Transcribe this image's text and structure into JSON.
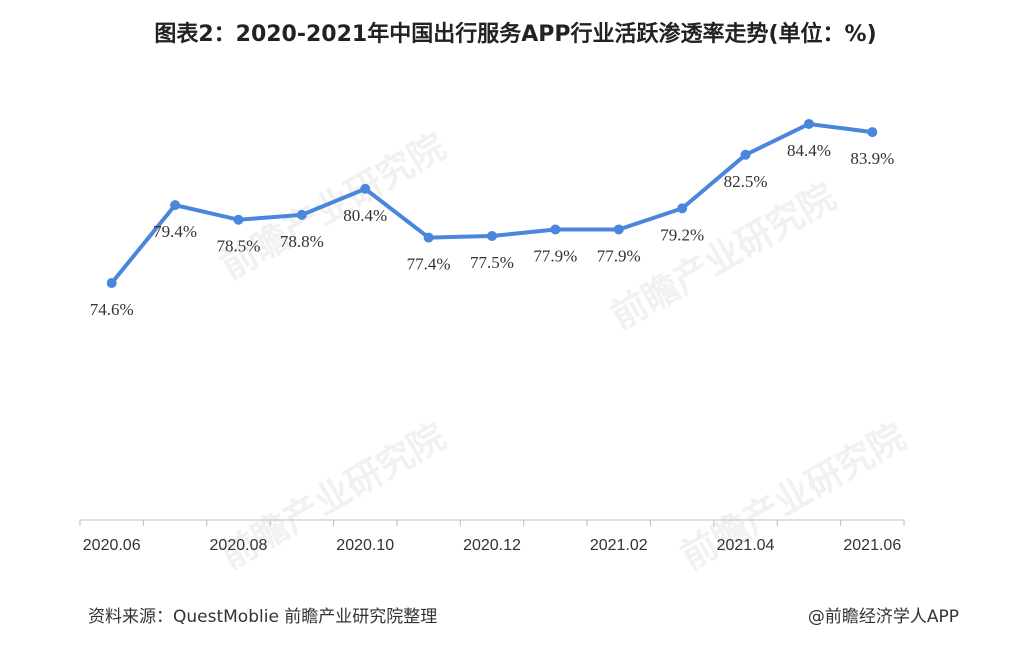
{
  "header": {
    "title": "图表2：2020-2021年中国出行服务APP行业活跃渗透率走势(单位：%)"
  },
  "footer": {
    "source": "资料来源：QuestMoblie 前瞻产业研究院整理",
    "brand": "@前瞻经济学人APP"
  },
  "watermark": {
    "text": "前瞻产业研究院"
  },
  "colors": {
    "line": "#4a87dc",
    "axis": "#bfbfbf",
    "text": "#333333"
  },
  "chart_data": {
    "type": "line",
    "title": "图表2：2020-2021年中国出行服务APP行业活跃渗透率走势(单位：%)",
    "x": [
      "2020.06",
      "2020.07",
      "2020.08",
      "2020.09",
      "2020.10",
      "2020.11",
      "2020.12",
      "2021.01",
      "2021.02",
      "2021.03",
      "2021.04",
      "2021.05",
      "2021.06"
    ],
    "tick_labels": [
      "2020.06",
      "2020.08",
      "2020.10",
      "2020.12",
      "2021.02",
      "2021.04",
      "2021.06"
    ],
    "series": [
      {
        "values": [
          74.6,
          79.4,
          78.5,
          78.8,
          80.4,
          77.4,
          77.5,
          77.9,
          77.9,
          79.2,
          82.5,
          84.4,
          83.9
        ]
      }
    ],
    "data_labels": [
      "74.6%",
      "79.4%",
      "78.5%",
      "78.8%",
      "80.4%",
      "77.4%",
      "77.5%",
      "77.9%",
      "77.9%",
      "79.2%",
      "82.5%",
      "84.4%",
      "83.9%"
    ],
    "ylim": [
      60,
      86
    ],
    "grid": false,
    "legend": "none"
  }
}
